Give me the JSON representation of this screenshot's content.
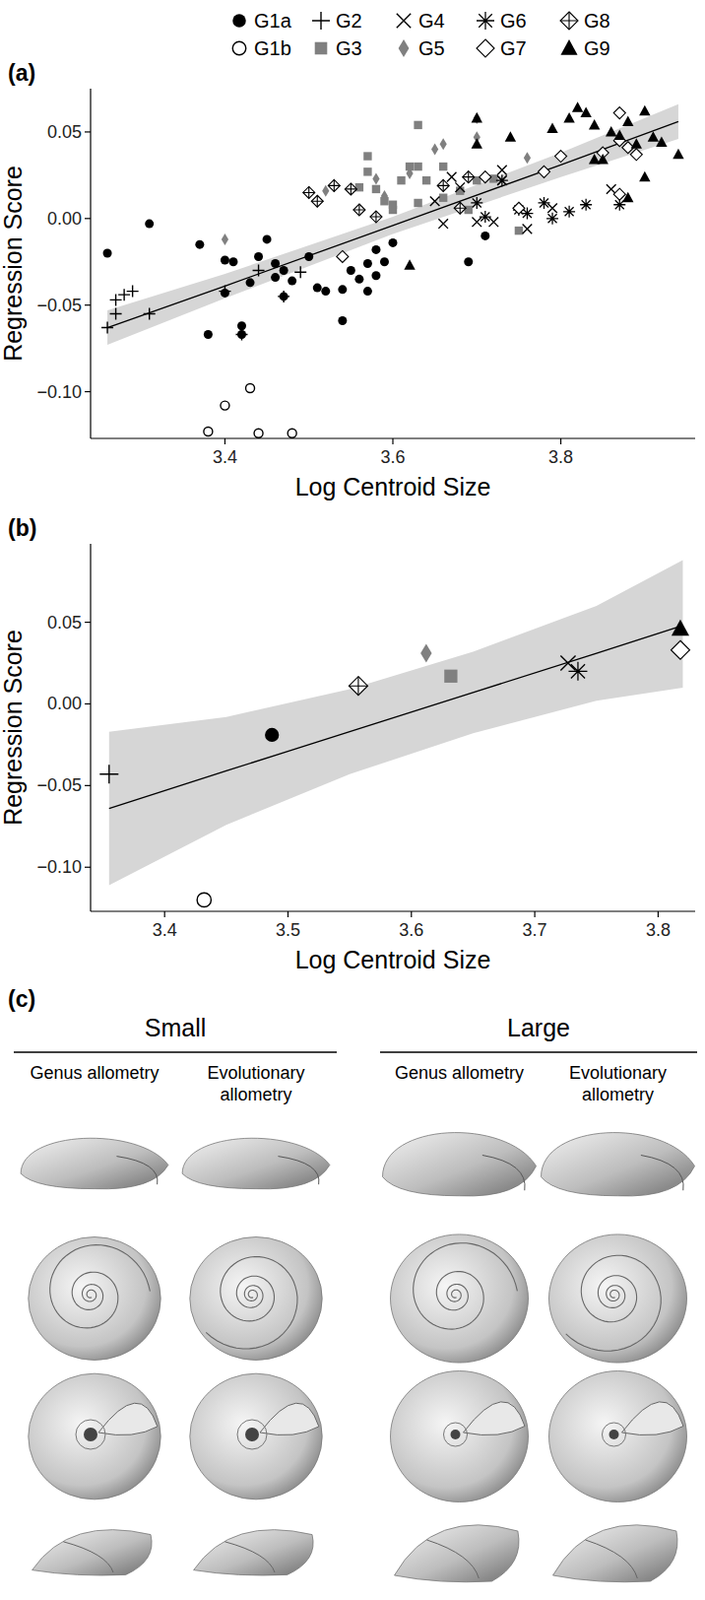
{
  "chart_data": [
    {
      "type": "scatter",
      "title": "(a)",
      "x_label": "Log Centroid Size",
      "y_label": "Regression Score",
      "legend": "top",
      "xlim": [
        3.24,
        3.96
      ],
      "ylim": [
        -0.127,
        0.075
      ],
      "xticks": [
        3.4,
        3.6,
        3.8
      ],
      "yticks": [
        {
          "value": 0.05,
          "label": "0.05"
        },
        {
          "value": 0,
          "label": "0.00"
        },
        {
          "value": -0.05,
          "label": "−0.05"
        },
        {
          "value": -0.1,
          "label": "−0.10"
        }
      ],
      "fit": {
        "x": [
          3.26,
          3.4,
          3.6,
          3.8,
          3.94
        ],
        "y": [
          -0.063,
          -0.039,
          -0.004,
          0.031,
          0.056
        ],
        "lower": [
          -0.073,
          -0.046,
          -0.009,
          0.024,
          0.046
        ],
        "upper": [
          -0.053,
          -0.032,
          0.001,
          0.038,
          0.066
        ]
      },
      "series": [
        {
          "name": "G1a",
          "color": "#000000",
          "marker": "filled_circle",
          "x": [
            3.26,
            3.31,
            3.37,
            3.38,
            3.4,
            3.4,
            3.41,
            3.42,
            3.42,
            3.43,
            3.44,
            3.45,
            3.46,
            3.46,
            3.47,
            3.47,
            3.48,
            3.5,
            3.51,
            3.52,
            3.54,
            3.54,
            3.55,
            3.56,
            3.57,
            3.58,
            3.58,
            3.59,
            3.6,
            3.69,
            3.71,
            3.57
          ],
          "values": [
            -0.02,
            -0.003,
            -0.015,
            -0.067,
            -0.024,
            -0.043,
            -0.025,
            -0.067,
            -0.062,
            -0.037,
            -0.022,
            -0.012,
            -0.026,
            -0.034,
            -0.045,
            -0.03,
            -0.036,
            -0.022,
            -0.04,
            -0.042,
            -0.041,
            -0.059,
            -0.03,
            -0.035,
            -0.026,
            -0.018,
            -0.033,
            -0.025,
            -0.014,
            -0.025,
            -0.01,
            -0.042
          ]
        },
        {
          "name": "G1b",
          "color": "#000000",
          "marker": "open_circle",
          "x": [
            3.38,
            3.4,
            3.43,
            3.44,
            3.48
          ],
          "values": [
            -0.123,
            -0.108,
            -0.098,
            -0.124,
            -0.124
          ]
        },
        {
          "name": "G2",
          "color": "#000000",
          "marker": "plus",
          "x": [
            3.26,
            3.27,
            3.27,
            3.28,
            3.29,
            3.31,
            3.4,
            3.42,
            3.44,
            3.47,
            3.49
          ],
          "values": [
            -0.063,
            -0.055,
            -0.047,
            -0.044,
            -0.042,
            -0.055,
            -0.042,
            -0.067,
            -0.03,
            -0.045,
            -0.031
          ]
        },
        {
          "name": "G3",
          "color": "#808080",
          "marker": "filled_square",
          "x": [
            3.56,
            3.57,
            3.58,
            3.59,
            3.6,
            3.6,
            3.61,
            3.62,
            3.63,
            3.63,
            3.63,
            3.64,
            3.66,
            3.66,
            3.68,
            3.69,
            3.7,
            3.72,
            3.75,
            3.57
          ],
          "values": [
            0.018,
            0.036,
            0.017,
            0.01,
            0.008,
            0.005,
            0.022,
            0.03,
            0.03,
            0.054,
            0.009,
            0.022,
            0.03,
            0.012,
            0.016,
            0.005,
            0.022,
            0.023,
            -0.007,
            0.027
          ]
        },
        {
          "name": "G4",
          "color": "#000000",
          "marker": "cross",
          "x": [
            3.65,
            3.66,
            3.67,
            3.68,
            3.7,
            3.72,
            3.73,
            3.73,
            3.76,
            3.79,
            3.86
          ],
          "values": [
            0.01,
            -0.003,
            0.024,
            0.018,
            -0.002,
            -0.002,
            0.028,
            0.022,
            -0.006,
            0.006,
            0.017
          ]
        },
        {
          "name": "G5",
          "color": "#808080",
          "marker": "filled_diamond",
          "x": [
            3.4,
            3.52,
            3.58,
            3.59,
            3.62,
            3.65,
            3.66,
            3.7,
            3.7,
            3.76
          ],
          "values": [
            -0.012,
            0.016,
            0.023,
            0.013,
            0.026,
            0.04,
            0.043,
            0.047,
            0.058,
            0.035
          ]
        },
        {
          "name": "G6",
          "color": "#000000",
          "marker": "asterisk",
          "x": [
            3.7,
            3.71,
            3.73,
            3.75,
            3.76,
            3.78,
            3.79,
            3.81,
            3.83,
            3.87
          ],
          "values": [
            0.009,
            0.001,
            0.022,
            0.005,
            0.003,
            0.009,
            0.0,
            0.004,
            0.008,
            0.008
          ]
        },
        {
          "name": "G7",
          "color": "#000000",
          "marker": "open_diamond",
          "x": [
            3.54,
            3.71,
            3.75,
            3.78,
            3.8,
            3.85,
            3.87,
            3.87,
            3.88,
            3.89,
            3.87
          ],
          "values": [
            -0.022,
            0.024,
            0.006,
            0.027,
            0.036,
            0.038,
            0.045,
            0.061,
            0.041,
            0.037,
            0.014
          ]
        },
        {
          "name": "G8",
          "color": "#000000",
          "marker": "diamond_plus",
          "x": [
            3.5,
            3.51,
            3.53,
            3.55,
            3.56,
            3.58,
            3.66,
            3.69,
            3.68
          ],
          "values": [
            0.015,
            0.01,
            0.019,
            0.017,
            0.005,
            0.001,
            0.019,
            0.024,
            0.006
          ]
        },
        {
          "name": "G9",
          "color": "#000000",
          "marker": "filled_triangle",
          "x": [
            3.62,
            3.7,
            3.7,
            3.74,
            3.79,
            3.81,
            3.82,
            3.83,
            3.84,
            3.85,
            3.86,
            3.87,
            3.88,
            3.89,
            3.9,
            3.91,
            3.92,
            3.94,
            3.84,
            3.9,
            3.88
          ],
          "values": [
            -0.027,
            0.043,
            0.058,
            0.047,
            0.052,
            0.058,
            0.064,
            0.061,
            0.054,
            0.034,
            0.05,
            0.048,
            0.056,
            0.043,
            0.062,
            0.047,
            0.044,
            0.037,
            0.034,
            0.024,
            0.012
          ]
        }
      ]
    },
    {
      "type": "scatter",
      "title": "(b)",
      "x_label": "Log Centroid Size",
      "y_label": "Regression Score",
      "xlim": [
        3.34,
        3.83
      ],
      "ylim": [
        -0.127,
        0.098
      ],
      "xticks": [
        3.4,
        3.5,
        3.6,
        3.7,
        3.8
      ],
      "yticks": [
        {
          "value": 0.05,
          "label": "0.05"
        },
        {
          "value": 0,
          "label": "0.00"
        },
        {
          "value": -0.05,
          "label": "−0.05"
        },
        {
          "value": -0.1,
          "label": "−0.10"
        }
      ],
      "fit": {
        "x": [
          3.355,
          3.45,
          3.55,
          3.65,
          3.75,
          3.82
        ],
        "y": [
          -0.064,
          -0.041,
          -0.017,
          0.007,
          0.031,
          0.048
        ],
        "lower": [
          -0.111,
          -0.074,
          -0.043,
          -0.018,
          0.002,
          0.01
        ],
        "upper": [
          -0.017,
          -0.008,
          0.009,
          0.032,
          0.06,
          0.088
        ]
      },
      "series": [
        {
          "name": "G1a",
          "color": "#000000",
          "marker": "filled_circle",
          "x": [
            3.487
          ],
          "values": [
            -0.019
          ]
        },
        {
          "name": "G1b",
          "color": "#000000",
          "marker": "open_circle",
          "x": [
            3.432
          ],
          "values": [
            -0.12
          ]
        },
        {
          "name": "G2",
          "color": "#000000",
          "marker": "plus",
          "x": [
            3.355
          ],
          "values": [
            -0.043
          ]
        },
        {
          "name": "G3",
          "color": "#808080",
          "marker": "filled_square",
          "x": [
            3.632
          ],
          "values": [
            0.017
          ]
        },
        {
          "name": "G4",
          "color": "#000000",
          "marker": "cross",
          "x": [
            3.727
          ],
          "values": [
            0.025
          ]
        },
        {
          "name": "G5",
          "color": "#808080",
          "marker": "filled_diamond",
          "x": [
            3.612
          ],
          "values": [
            0.031
          ]
        },
        {
          "name": "G6",
          "color": "#000000",
          "marker": "asterisk",
          "x": [
            3.735
          ],
          "values": [
            0.02
          ]
        },
        {
          "name": "G7",
          "color": "#000000",
          "marker": "open_diamond",
          "x": [
            3.818
          ],
          "values": [
            0.033
          ]
        },
        {
          "name": "G8",
          "color": "#000000",
          "marker": "diamond_plus",
          "x": [
            3.557
          ],
          "values": [
            0.011
          ]
        },
        {
          "name": "G9",
          "color": "#000000",
          "marker": "filled_triangle",
          "x": [
            3.818
          ],
          "values": [
            0.046
          ]
        }
      ]
    }
  ],
  "panel_c": {
    "title": "(c)",
    "groups": [
      {
        "label": "Small",
        "columns": [
          "Genus allometry",
          "Evolutionary allometry"
        ]
      },
      {
        "label": "Large",
        "columns": [
          "Genus allometry",
          "Evolutionary allometry"
        ]
      }
    ]
  }
}
